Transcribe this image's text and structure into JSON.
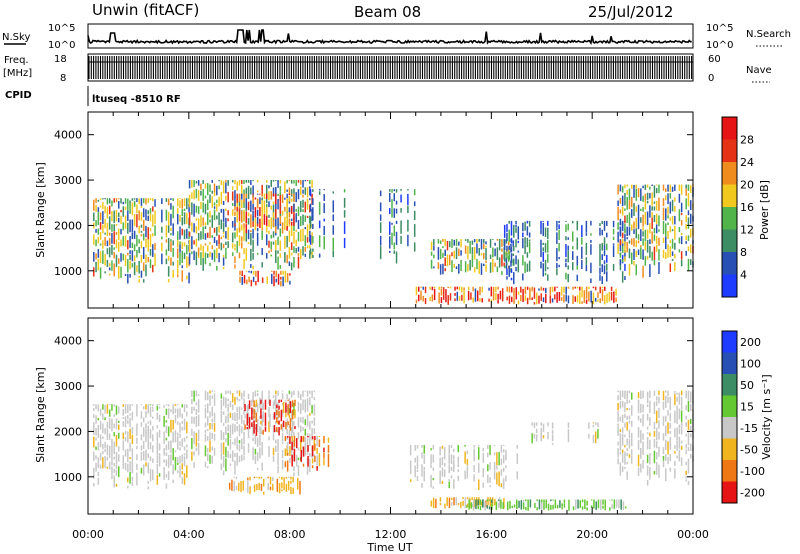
{
  "header": {
    "station": "Unwin (fitACF)",
    "beam": "Beam 08",
    "date": "25/Jul/2012"
  },
  "summary_panels": {
    "nsky_label": "N.Sky",
    "nsky_ticks": [
      "10^5",
      "10^0"
    ],
    "nsearch_label": "N.Search",
    "freq_label": "Freq.",
    "freq_unit": "[MHz]",
    "freq_ticks": [
      "18",
      "8"
    ],
    "nave_label": "Nave",
    "nave_ticks": [
      "60",
      "0"
    ],
    "cpid_label": "CPID",
    "cpid_text": "ltuseq -8510 RF"
  },
  "chart_data": [
    {
      "type": "heatmap",
      "panel": "power",
      "ylabel": "Slant Range [km]",
      "ylim": [
        180,
        4500
      ],
      "yticks": [
        1000,
        2000,
        3000,
        4000
      ],
      "xlim_hours": [
        0,
        24
      ],
      "colorbar_label": "Power [dB]",
      "colorbar_ticks": [
        "4",
        "8",
        "12",
        "16",
        "20",
        "24",
        "28"
      ],
      "colors": [
        "#1e3cff",
        "#2850b4",
        "#3c8c64",
        "#50b44b",
        "#f0c81e",
        "#f08c1e",
        "#e63214",
        "#e61414"
      ]
    },
    {
      "type": "heatmap",
      "panel": "velocity",
      "ylabel": "Slant Range [km]",
      "ylim": [
        180,
        4500
      ],
      "yticks": [
        1000,
        2000,
        3000,
        4000
      ],
      "xlim_hours": [
        0,
        24
      ],
      "xticks": [
        "00:00",
        "04:00",
        "08:00",
        "12:00",
        "16:00",
        "20:00",
        "00:00"
      ],
      "xlabel": "Time UT",
      "colorbar_label": "Velocity [m s⁻¹]",
      "colorbar_ticks": [
        "200",
        "100",
        "50",
        "15",
        "-15",
        "-50",
        "-100",
        "-200"
      ],
      "colors": [
        "#1e3cff",
        "#2850b4",
        "#3c8c64",
        "#64c832",
        "#c8c8c8",
        "#f0b41e",
        "#f07814",
        "#e61414"
      ]
    }
  ]
}
